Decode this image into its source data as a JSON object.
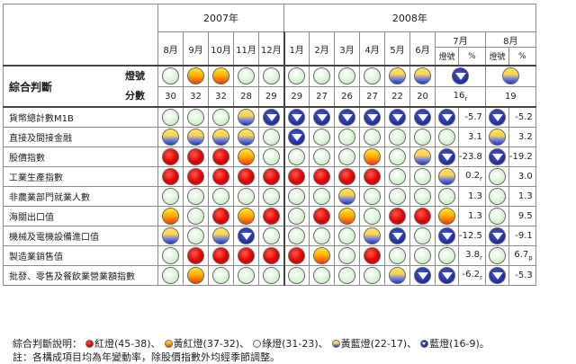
{
  "header": {
    "year_2007": "2007年",
    "year_2008": "2008年",
    "months": [
      "8月",
      "9月",
      "10月",
      "11月",
      "12月",
      "1月",
      "2月",
      "3月",
      "4月",
      "5月",
      "6月",
      "7月",
      "8月"
    ],
    "sub_signal": "燈號",
    "sub_pct": "%"
  },
  "summary": {
    "title": "綜合判斷",
    "signal_label": "燈號",
    "score_label": "分數",
    "signals": [
      "green",
      "yellow-red",
      "yellow-red",
      "green",
      "green",
      "green",
      "green",
      "green",
      "green",
      "yellow-blue",
      "yellow-blue",
      "blue",
      "yellow-blue"
    ],
    "scores": [
      "30",
      "32",
      "32",
      "28",
      "29",
      "29",
      "27",
      "26",
      "27",
      "22",
      "20",
      "16",
      "19"
    ],
    "score_suffixes": [
      "",
      "",
      "",
      "",
      "",
      "",
      "",
      "",
      "",
      "",
      "",
      "r",
      ""
    ]
  },
  "indicators": [
    {
      "label": "貨幣總計數M1B",
      "signals": [
        "green",
        "green",
        "green",
        "yellow-blue",
        "blue",
        "blue",
        "blue",
        "blue",
        "blue",
        "blue",
        "blue",
        "blue",
        "blue"
      ],
      "jul_value": "-5.7",
      "jul_suffix": "",
      "aug_value": "-5.2",
      "aug_suffix": ""
    },
    {
      "label": "直接及間接金融",
      "signals": [
        "yellow-blue",
        "yellow-blue",
        "yellow-blue",
        "yellow-blue",
        "green",
        "blue",
        "green",
        "green",
        "green",
        "green",
        "green",
        "green",
        "yellow-blue"
      ],
      "jul_value": "3.1",
      "jul_suffix": "",
      "aug_value": "3.2",
      "aug_suffix": ""
    },
    {
      "label": "股價指數",
      "signals": [
        "red",
        "red",
        "red",
        "yellow-red",
        "green",
        "green",
        "green",
        "green",
        "yellow-red",
        "green",
        "yellow-blue",
        "blue",
        "blue"
      ],
      "jul_value": "-23.8",
      "jul_suffix": "",
      "aug_value": "-19.2",
      "aug_suffix": ""
    },
    {
      "label": "工業生產指數",
      "signals": [
        "red",
        "red",
        "red",
        "red",
        "red",
        "red",
        "red",
        "red",
        "red",
        "green",
        "green",
        "yellow-blue",
        "green"
      ],
      "jul_value": "0.2",
      "jul_suffix": "r",
      "aug_value": "3.0",
      "aug_suffix": ""
    },
    {
      "label": "非農業部門就業人數",
      "signals": [
        "green",
        "green",
        "green",
        "green",
        "green",
        "green",
        "green",
        "yellow-blue",
        "green",
        "green",
        "green",
        "green",
        "green"
      ],
      "jul_value": "1.3",
      "jul_suffix": "",
      "aug_value": "1.3",
      "aug_suffix": ""
    },
    {
      "label": "海關出口值",
      "signals": [
        "yellow-red",
        "green",
        "red",
        "yellow-red",
        "red",
        "green",
        "red",
        "yellow-red",
        "green",
        "red",
        "red",
        "yellow-red",
        "green"
      ],
      "jul_value": "1.3",
      "jul_suffix": "",
      "aug_value": "9.5",
      "aug_suffix": ""
    },
    {
      "label": "機械及電機設備進口值",
      "signals": [
        "yellow-blue",
        "green",
        "yellow-blue",
        "blue",
        "green",
        "green",
        "green",
        "green",
        "yellow-blue",
        "blue",
        "green",
        "blue",
        "blue"
      ],
      "jul_value": "-12.5",
      "jul_suffix": "",
      "aug_value": "-9.1",
      "aug_suffix": ""
    },
    {
      "label": "製造業銷售值",
      "signals": [
        "green",
        "red",
        "red",
        "red",
        "red",
        "red",
        "yellow-red",
        "green",
        "red",
        "green",
        "green",
        "green",
        "green"
      ],
      "jul_value": "3.8",
      "jul_suffix": "r",
      "aug_value": "6.7",
      "aug_suffix": "p"
    },
    {
      "label": "批發、零售及餐飲業營業額指數",
      "signals": [
        "green",
        "yellow-red",
        "green",
        "green",
        "green",
        "green",
        "green",
        "green",
        "green",
        "yellow-blue",
        "blue",
        "blue",
        "blue"
      ],
      "jul_value": "-6.2",
      "jul_suffix": "r",
      "aug_value": "-5.3",
      "aug_suffix": ""
    }
  ],
  "legend": {
    "label": "綜合判斷說明：",
    "items": [
      {
        "signal": "red",
        "text": "紅燈(45-38)、"
      },
      {
        "signal": "yellow-red",
        "text": "黃紅燈(37-32)、"
      },
      {
        "signal": "green",
        "text": "綠燈(31-23)、"
      },
      {
        "signal": "yellow-blue",
        "text": "黃藍燈(22-17)、"
      },
      {
        "signal": "blue",
        "text": "藍燈(16-9)。"
      }
    ]
  },
  "note": "註：各構成項目均為年變動率，除股價指數外均經季節調整。",
  "colors": {
    "red": "#e00000",
    "yellow-red": "#ffb000",
    "green": "#d9f2d4",
    "yellow-blue": "#ffd24a",
    "blue": "#1c2c9c",
    "border": "#8c8c8c"
  }
}
